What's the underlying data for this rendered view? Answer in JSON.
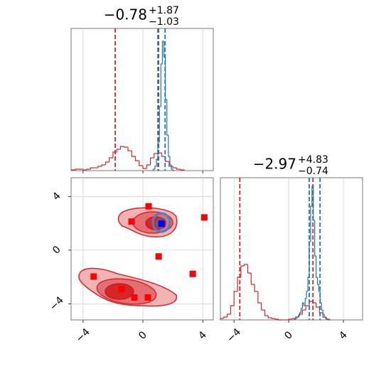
{
  "chart_data": [
    {
      "type": "histogram",
      "title": "−0.78",
      "title_superscript": "+1.87",
      "title_subscript": "−1.03",
      "xlim": [
        -4.8,
        4.7
      ],
      "ylim": [
        0,
        1
      ],
      "xticks": [
        {
          "value": -4,
          "label": "−4"
        },
        0,
        4
      ],
      "show_tick_labels": false,
      "grid": true,
      "series": [
        {
          "color": "#d62728",
          "bins": [
            -4.75,
            -4.5,
            -4.25,
            -4,
            -3.75,
            -3.5,
            -3.25,
            -3,
            -2.75,
            -2.5,
            -2.25,
            -2,
            -1.75,
            -1.5,
            -1.25,
            -1,
            -0.75,
            -0.5,
            -0.25,
            0,
            0.25,
            0.5,
            0.75,
            1,
            1.25,
            1.5,
            1.75,
            2,
            2.25,
            2.5,
            2.75
          ],
          "values": [
            0.005,
            0.01,
            0.01,
            0.005,
            0.01,
            0.02,
            0.02,
            0.03,
            0.04,
            0.06,
            0.09,
            0.13,
            0.15,
            0.17,
            0.165,
            0.14,
            0.1,
            0.07,
            0.035,
            0.015,
            0.04,
            0.09,
            0.12,
            0.125,
            0.1,
            0.065,
            0.03,
            0.02,
            0.01,
            0.005
          ],
          "quantiles": [
            -1.85,
            1.0
          ]
        },
        {
          "color": "#1f77b4",
          "bins": [
            0.6,
            0.7,
            0.8,
            0.9,
            1.0,
            1.1,
            1.2,
            1.3,
            1.4,
            1.5,
            1.6,
            1.7,
            1.8,
            1.9,
            2.0,
            2.1
          ],
          "values": [
            0,
            0.01,
            0.03,
            0.08,
            0.2,
            0.45,
            0.75,
            0.91,
            0.8,
            0.5,
            0.25,
            0.1,
            0.04,
            0.01,
            0
          ],
          "quantiles": [
            1.05,
            1.48
          ]
        }
      ]
    },
    {
      "type": "scatter",
      "xlim": [
        -4.8,
        4.7
      ],
      "ylim": [
        -5.2,
        5.4
      ],
      "xticks": [
        {
          "value": -4,
          "label": "−4"
        },
        0,
        4
      ],
      "yticks": [
        {
          "value": -4,
          "label": "−4"
        },
        0,
        4
      ],
      "grid": true,
      "series": [
        {
          "color": "#ff0000",
          "x": [
            0.38,
            -0.76,
            1.29,
            4.1,
            1.05,
            3.33,
            -3.29,
            -1.43,
            -0.57,
            0.33
          ],
          "values": [
            3.27,
            2.13,
            1.97,
            2.44,
            -0.47,
            -1.77,
            -1.97,
            -2.91,
            -3.53,
            -3.53
          ]
        },
        {
          "color": "#0000ff",
          "x": [
            1.24
          ],
          "values": [
            1.97
          ]
        }
      ]
    },
    {
      "type": "histogram",
      "title": "−2.97",
      "title_superscript": "+4.83",
      "title_subscript": "−0.74",
      "xlim": [
        -5.0,
        5.4
      ],
      "ylim": [
        0,
        1
      ],
      "xticks": [
        {
          "value": -4,
          "label": "−4"
        },
        0,
        4
      ],
      "show_tick_labels": true,
      "grid": true,
      "series": [
        {
          "color": "#d62728",
          "bins": [
            -5,
            -4.75,
            -4.5,
            -4.25,
            -4,
            -3.75,
            -3.5,
            -3.25,
            -3,
            -2.75,
            -2.5,
            -2.25,
            -2,
            -1.75,
            -1.5,
            -1.25,
            -1,
            -0.75,
            -0.5,
            -0.25,
            0,
            0.25,
            0.5,
            0.75,
            1,
            1.25,
            1.5,
            1.75,
            2,
            2.25,
            2.5,
            2.75,
            3
          ],
          "values": [
            0.01,
            0.02,
            0.04,
            0.1,
            0.2,
            0.3,
            0.38,
            0.39,
            0.33,
            0.25,
            0.2,
            0.12,
            0.07,
            0.03,
            0.015,
            0.01,
            0.005,
            0,
            0,
            0,
            0.005,
            0.01,
            0.02,
            0.04,
            0.07,
            0.1,
            0.13,
            0.12,
            0.09,
            0.05,
            0.02,
            0.005
          ],
          "quantiles": [
            -3.58,
            1.77
          ]
        },
        {
          "color": "#1f77b4",
          "bins": [
            0.4,
            0.5,
            0.6,
            0.7,
            0.8,
            0.9,
            1.0,
            1.1,
            1.2,
            1.3,
            1.4,
            1.5,
            1.6,
            1.7,
            1.8,
            1.9,
            2.0,
            2.1,
            2.2,
            2.3,
            2.4,
            2.5,
            2.6,
            2.7,
            2.8,
            2.9,
            3.0
          ],
          "values": [
            0.005,
            0.01,
            0.02,
            0.03,
            0.05,
            0.08,
            0.12,
            0.1,
            0.15,
            0.2,
            0.3,
            0.55,
            0.8,
            0.94,
            0.7,
            0.45,
            0.3,
            0.25,
            0.2,
            0.12,
            0.07,
            0.04,
            0.02,
            0.01,
            0.005,
            0
          ],
          "quantiles": [
            1.5,
            2.29
          ]
        }
      ]
    }
  ]
}
